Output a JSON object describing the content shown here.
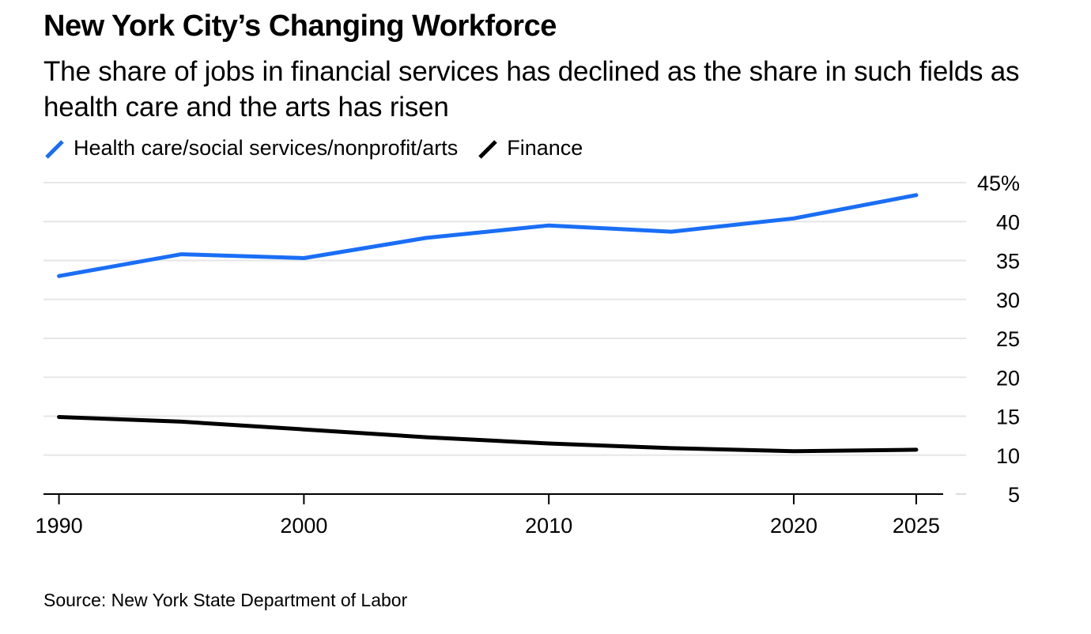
{
  "header": {
    "title": "New York City’s Changing Workforce",
    "subtitle": "The share of jobs in financial services has declined as the share in such fields as health care and the arts has risen"
  },
  "legend": [
    {
      "label": "Health care/social services/nonprofit/arts",
      "color": "#1a6ef5"
    },
    {
      "label": "Finance",
      "color": "#000000"
    }
  ],
  "footer": {
    "source": "Source: New York State Department of Labor"
  },
  "chart_data": {
    "type": "line",
    "title": "New York City’s Changing Workforce",
    "xlabel": "",
    "ylabel": "",
    "x": [
      1990,
      1995,
      2000,
      2005,
      2010,
      2015,
      2020,
      2025
    ],
    "x_ticks": [
      1990,
      2000,
      2010,
      2020,
      2025
    ],
    "x_tick_labels": [
      "1990",
      "2000",
      "2010",
      "2020",
      "2025"
    ],
    "xlim": [
      1989.4,
      2026.1
    ],
    "ylim": [
      5,
      45
    ],
    "y_ticks": [
      5,
      10,
      15,
      20,
      25,
      30,
      35,
      40,
      45
    ],
    "y_tick_labels": [
      "5",
      "10",
      "15",
      "20",
      "25",
      "30",
      "35",
      "40",
      "45%"
    ],
    "grid": true,
    "legend_position": "top-left",
    "series": [
      {
        "name": "Health care/social services/nonprofit/arts",
        "color": "#1a6ef5",
        "values": [
          33.0,
          35.8,
          35.3,
          37.9,
          39.5,
          38.7,
          40.4,
          43.4
        ]
      },
      {
        "name": "Finance",
        "color": "#000000",
        "values": [
          14.9,
          14.3,
          13.3,
          12.3,
          11.5,
          10.9,
          10.5,
          10.7
        ]
      }
    ]
  }
}
